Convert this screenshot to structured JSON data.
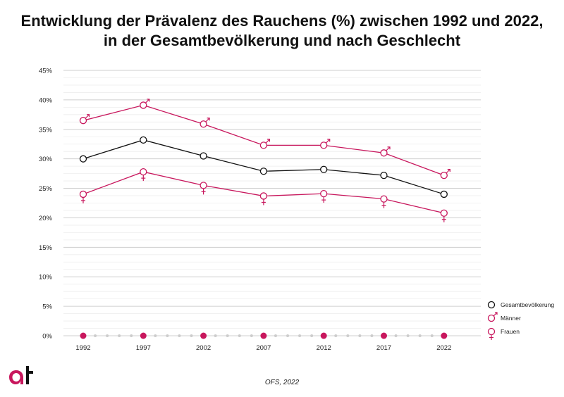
{
  "title_line1": "Entwicklung der Prävalenz des Rauchens (%) zwischen 1992 und 2022,",
  "title_line2": "in der Gesamtbevölkerung und nach Geschlecht",
  "source": "OFS, 2022",
  "colors": {
    "accent": "#c8175d",
    "total": "#111111",
    "grid": "#dddddd",
    "dots": "#cccccc"
  },
  "chart_data": {
    "type": "line",
    "title": "Entwicklung der Prävalenz des Rauchens (%) zwischen 1992 und 2022, in der Gesamtbevölkerung und nach Geschlecht",
    "x": [
      "1992",
      "1997",
      "2002",
      "2007",
      "2012",
      "2017",
      "2022"
    ],
    "ylim": [
      0,
      45
    ],
    "yticks": [
      "0%",
      "5%",
      "10%",
      "15%",
      "20%",
      "25%",
      "30%",
      "35%",
      "40%",
      "45%"
    ],
    "grid": true,
    "legend_position": "right",
    "series": [
      {
        "name": "Gesamtbevölkerung",
        "values": [
          30.0,
          33.2,
          30.5,
          27.9,
          28.2,
          27.2,
          24.0
        ],
        "color": "#111111",
        "symbol": ""
      },
      {
        "name": "Männer",
        "values": [
          36.5,
          39.1,
          35.9,
          32.3,
          32.3,
          31.0,
          27.2
        ],
        "color": "#c8175d",
        "symbol": "♂"
      },
      {
        "name": "Frauen",
        "values": [
          24.0,
          27.8,
          25.5,
          23.7,
          24.1,
          23.2,
          20.8
        ],
        "color": "#c8175d",
        "symbol": "♀"
      }
    ]
  }
}
